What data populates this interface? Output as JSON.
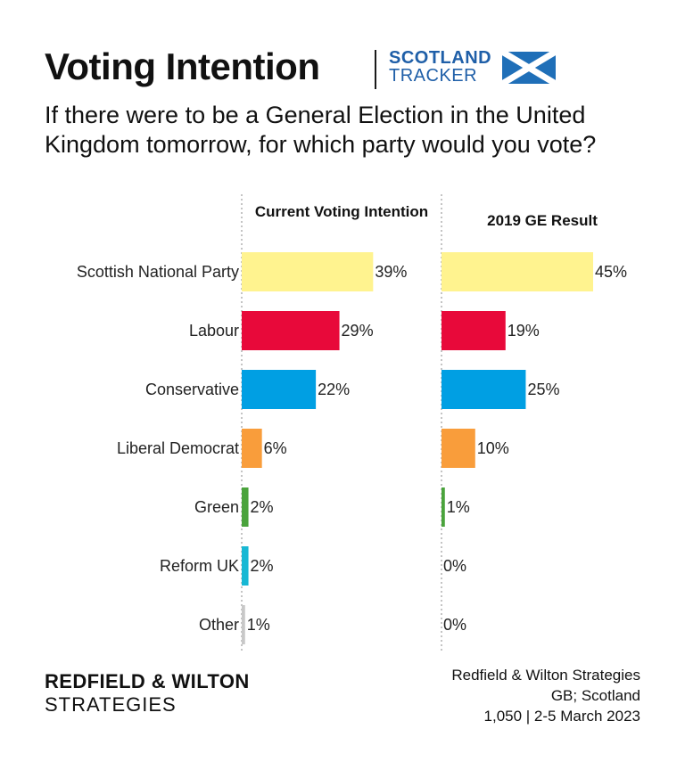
{
  "header": {
    "title": "Voting Intention",
    "tracker_line1": "SCOTLAND",
    "tracker_line2": "TRACKER",
    "flag_icon": "scotland-saltire-flag-icon",
    "flag_colors": {
      "field": "#1f6fb8",
      "cross": "#ffffff"
    },
    "question": "If there were to be a General Election in the United Kingdom tomorrow, for which party would you vote?"
  },
  "chart_data": {
    "type": "bar",
    "orientation": "horizontal",
    "categories": [
      "Scottish National Party",
      "Labour",
      "Conservative",
      "Liberal Democrat",
      "Green",
      "Reform UK",
      "Other"
    ],
    "colors": [
      "#fff38f",
      "#e8093a",
      "#009fe3",
      "#f99d3b",
      "#4aa33c",
      "#18b8d4",
      "#c8c8c8"
    ],
    "series": [
      {
        "name": "Current Voting Intention",
        "values": [
          39,
          29,
          22,
          6,
          2,
          2,
          1
        ],
        "labels": [
          "39%",
          "29%",
          "22%",
          "6%",
          "2%",
          "2%",
          "1%"
        ]
      },
      {
        "name": "2019 GE Result",
        "values": [
          45,
          19,
          25,
          10,
          1,
          0,
          0
        ],
        "labels": [
          "45%",
          "19%",
          "25%",
          "10%",
          "1%",
          "0%",
          "0%"
        ]
      }
    ],
    "unit": "%",
    "xlim": [
      0,
      45
    ],
    "grid": false
  },
  "footer": {
    "brand_line1": "REDFIELD & WILTON",
    "brand_line2": "STRATEGIES",
    "source_line1": "Redfield & Wilton Strategies",
    "source_line2": "GB; Scotland",
    "source_line3": "1,050 | 2-5 March 2023"
  }
}
